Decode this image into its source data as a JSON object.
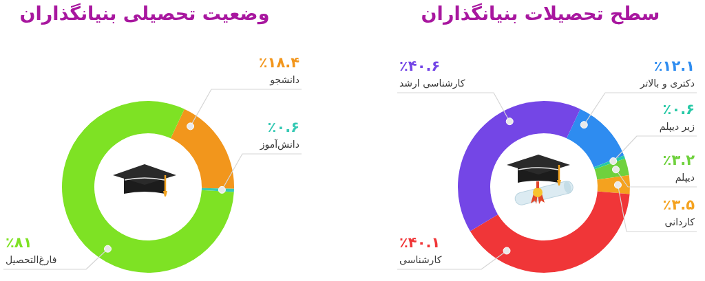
{
  "chart_data": [
    {
      "type": "donut",
      "title": "سطح تحصیلات بنیانگذاران",
      "categories": [
        "دکتری و بالاتر",
        "زیر دیپلم",
        "دیپلم",
        "کاردانی",
        "کارشناسی",
        "کارشناسی ارشد"
      ],
      "values": [
        12.1,
        0.6,
        3.2,
        3.5,
        40.1,
        40.6
      ],
      "value_labels": [
        "٪۱۲.۱",
        "٪۰.۶",
        "٪۳.۲",
        "٪۳.۵",
        "٪۴۰.۱",
        "٪۴۰.۶"
      ],
      "colors": [
        "#2e8cf0",
        "#27c9a6",
        "#6fd13d",
        "#f4a21f",
        "#f03638",
        "#7446e6"
      ]
    },
    {
      "type": "donut",
      "title": "وضعیت تحصیلی بنیانگذاران",
      "categories": [
        "دانشجو",
        "دانش‌آموز",
        "فارغ‌التحصیل"
      ],
      "values": [
        18.4,
        0.6,
        81
      ],
      "value_labels": [
        "٪۱۸.۴",
        "٪۰.۶",
        "٪۸۱"
      ],
      "colors": [
        "#f2961c",
        "#36c9b4",
        "#7ee224"
      ]
    }
  ]
}
